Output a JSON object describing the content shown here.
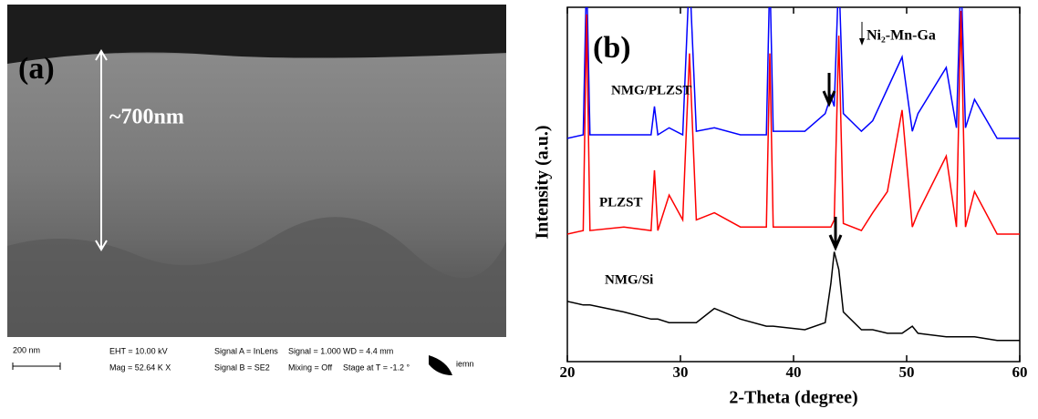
{
  "figure_a": {
    "panel_label": "(a)",
    "thickness_label": "~700nm",
    "scale_bar": "200 nm",
    "info": [
      "EHT = 10.00 kV",
      "Mag = 52.64 K X",
      "Signal A = InLens",
      "Signal B = SE2",
      "Signal = 1.000",
      "Mixing = Off",
      "WD = 4.4 mm",
      "Stage at T = -1.2 °"
    ],
    "logo": "iemn"
  },
  "chart_data": {
    "type": "line",
    "panel_label": "(b)",
    "x_label": "2-Theta (degree)",
    "y_label": "Intensity (a.u.)",
    "marker_label": "Ni₂-Mn-Ga",
    "x": [
      20,
      21.4,
      21.7,
      22,
      25,
      27.4,
      27.7,
      28,
      29,
      30.2,
      30.8,
      31.4,
      33,
      35.3,
      37.6,
      37.9,
      38.2,
      41,
      42.8,
      43.3,
      43.6,
      44,
      44.4,
      46,
      47,
      48.3,
      49.6,
      50.5,
      51,
      53.5,
      54.4,
      54.8,
      55.2,
      56,
      58,
      60
    ],
    "series": [
      {
        "name": "NMG/PLZST",
        "color": "#0000ff",
        "values": [
          63,
          64,
          110,
          64,
          64,
          64,
          72,
          64,
          66,
          64,
          110,
          65,
          66,
          64,
          64,
          110,
          65,
          65,
          70,
          75,
          72,
          110,
          70,
          65,
          68,
          77,
          86,
          65,
          70,
          83,
          66,
          110,
          66,
          74,
          63,
          63
        ]
      },
      {
        "name": "PLZST",
        "color": "#ff0000",
        "values": [
          36,
          37,
          98,
          37,
          38,
          37,
          54,
          37,
          47,
          40,
          87,
          40,
          42,
          38,
          38,
          87,
          38,
          38,
          38,
          38,
          40,
          92,
          39,
          37,
          42,
          48,
          71,
          38,
          42,
          58,
          38,
          99,
          38,
          48,
          36,
          36
        ]
      },
      {
        "name": "NMG/Si",
        "color": "#000000",
        "values": [
          17,
          16,
          16,
          16,
          14,
          12,
          12,
          12,
          11,
          11,
          11,
          11,
          15,
          12,
          10,
          10,
          10,
          9,
          11,
          22,
          31,
          26,
          14,
          9,
          9,
          8,
          8,
          10,
          8,
          7,
          7,
          7,
          7,
          7,
          6,
          6
        ]
      }
    ],
    "xlim": [
      20,
      60
    ],
    "xticks": [
      20,
      30,
      40,
      50,
      60
    ],
    "ylim": [
      0,
      100
    ]
  }
}
